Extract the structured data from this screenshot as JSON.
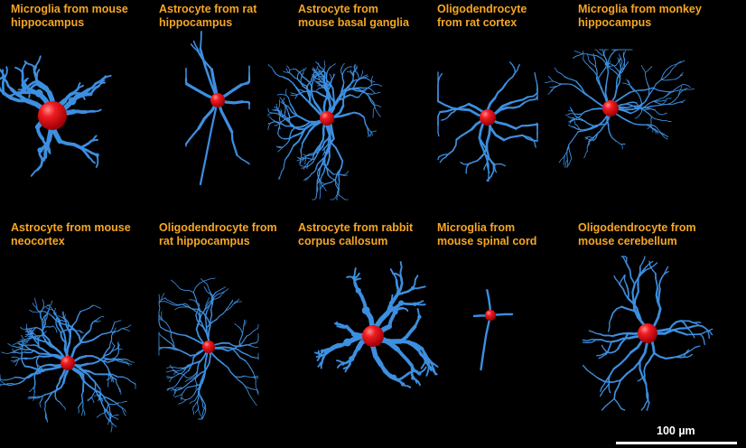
{
  "panels": [
    {
      "label": "Microglia from mouse\nhippocampus",
      "cell_type": "microglia",
      "soma": "large"
    },
    {
      "label": "Astrocyte from rat\nhippocampus",
      "cell_type": "astrocyte",
      "soma": "medium"
    },
    {
      "label": "Astrocyte from\nmouse basal ganglia",
      "cell_type": "astrocyte",
      "soma": "medium"
    },
    {
      "label": "Oligodendrocyte\nfrom rat cortex",
      "cell_type": "oligodendrocyte",
      "soma": "medium"
    },
    {
      "label": "Microglia from monkey\nhippocampus",
      "cell_type": "microglia",
      "soma": "medium"
    },
    {
      "label": "Astrocyte from mouse\nneocortex",
      "cell_type": "astrocyte",
      "soma": "medium"
    },
    {
      "label": "Oligodendrocyte from\nrat hippocampus",
      "cell_type": "oligodendrocyte",
      "soma": "small"
    },
    {
      "label": "Astrocyte from rabbit\ncorpus callosum",
      "cell_type": "astrocyte",
      "soma": "large"
    },
    {
      "label": "Microglia from\nmouse spinal cord",
      "cell_type": "microglia",
      "soma": "small"
    },
    {
      "label": "Oligodendrocyte from\nmouse cerebellum",
      "cell_type": "oligodendrocyte",
      "soma": "large"
    }
  ],
  "scale_bar": {
    "label": "100 µm"
  },
  "colors": {
    "process": "#3d8fe0",
    "soma": "#e8121b",
    "label": "#f5a623",
    "background": "#000000"
  }
}
